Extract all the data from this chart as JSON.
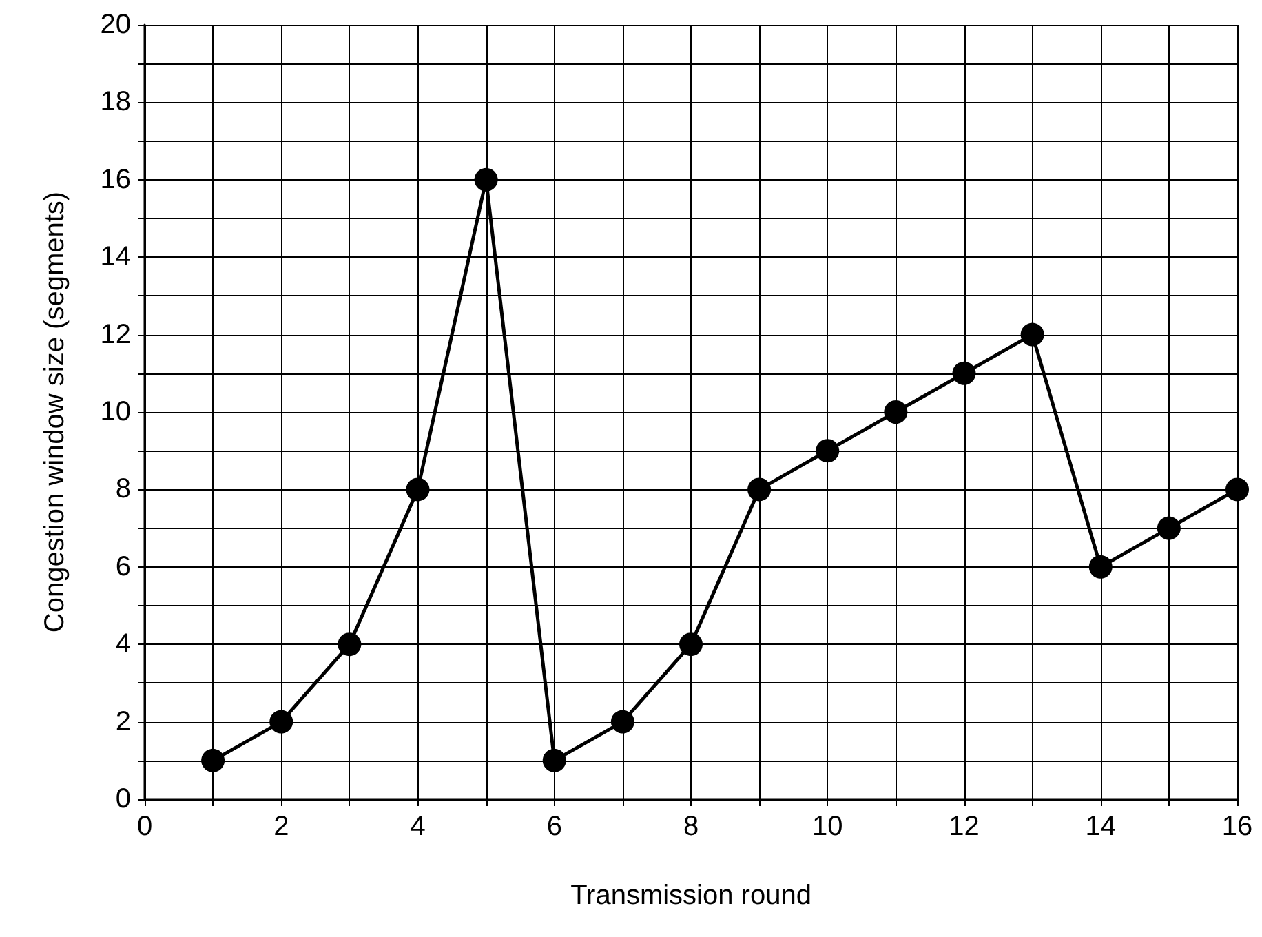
{
  "chart_data": {
    "type": "line",
    "xlabel": "Transmission round",
    "ylabel": "Congestion window size (segments)",
    "x": [
      1,
      2,
      3,
      4,
      5,
      6,
      7,
      8,
      9,
      10,
      11,
      12,
      13,
      14,
      15,
      16
    ],
    "series": [
      {
        "color": "#000000",
        "values": [
          1,
          2,
          4,
          8,
          16,
          1,
          2,
          4,
          8,
          9,
          10,
          11,
          12,
          6,
          7,
          8
        ]
      }
    ],
    "xlim": [
      0,
      16
    ],
    "xticks": [
      0,
      {
        "value": 1,
        "label": null
      },
      2,
      {
        "value": 3,
        "label": null
      },
      4,
      {
        "value": 5,
        "label": null
      },
      6,
      {
        "value": 7,
        "label": null
      },
      8,
      {
        "value": 9,
        "label": null
      },
      10,
      {
        "value": 11,
        "label": null
      },
      12,
      {
        "value": 13,
        "label": null
      },
      14,
      {
        "value": 15,
        "label": null
      },
      16
    ],
    "ylim": [
      0,
      20
    ],
    "yticks": [
      0,
      {
        "value": 1,
        "label": null
      },
      2,
      {
        "value": 3,
        "label": null
      },
      4,
      {
        "value": 5,
        "label": null
      },
      6,
      {
        "value": 7,
        "label": null
      },
      8,
      {
        "value": 9,
        "label": null
      },
      10,
      {
        "value": 11,
        "label": null
      },
      12,
      {
        "value": 13,
        "label": null
      },
      14,
      {
        "value": 15,
        "label": null
      },
      16,
      {
        "value": 17,
        "label": null
      },
      18,
      {
        "value": 19,
        "label": null
      },
      20
    ],
    "grid": true,
    "marker": "circle",
    "line_style": "solid"
  }
}
